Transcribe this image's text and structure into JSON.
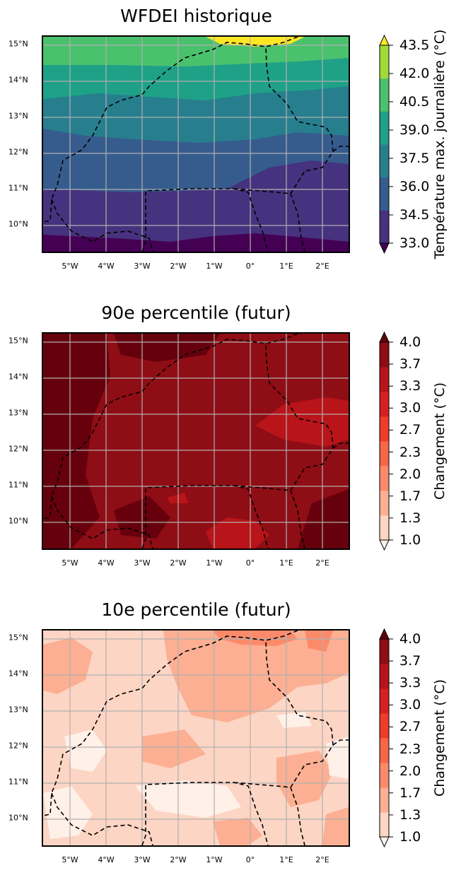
{
  "map_axes": {
    "lat_ticks": [
      "15°N",
      "14°N",
      "13°N",
      "12°N",
      "11°N",
      "10°N"
    ],
    "lon_ticks": [
      "5°W",
      "4°W",
      "3°W",
      "2°W",
      "1°W",
      "0°",
      "1°E",
      "2°E"
    ],
    "lat_range": [
      9.2,
      15.25
    ],
    "lon_range": [
      -5.8,
      2.75
    ],
    "gridlines": true,
    "boundaries": "dashed black country borders"
  },
  "panels": [
    {
      "title": "WFDEI historique",
      "colormap": "viridis",
      "colors": [
        "#440154",
        "#46327e",
        "#365c8d",
        "#277f8e",
        "#1fa187",
        "#4ac16d",
        "#a0da39",
        "#fde725"
      ],
      "colorbar": {
        "ticks": [
          "33.0",
          "34.5",
          "36.0",
          "37.5",
          "39.0",
          "40.5",
          "42.0",
          "43.5"
        ],
        "label": "Température max. journalière (°C)",
        "extend": "both"
      },
      "bands": [
        {
          "lat_top": 15.25,
          "lat_bottom": 14.95,
          "level": 7
        },
        {
          "lat_top": 14.95,
          "lat_bottom": 14.5,
          "level": 5
        },
        {
          "lat_top": 14.5,
          "lat_bottom": 13.5,
          "level": 4
        },
        {
          "lat_top": 13.5,
          "lat_bottom": 12.7,
          "level": 3
        },
        {
          "lat_top": 12.7,
          "lat_bottom": 11.9,
          "level": 2
        },
        {
          "lat_top": 11.9,
          "lat_bottom": 10.3,
          "level": 1
        },
        {
          "lat_top": 10.3,
          "lat_bottom": 9.2,
          "level": 0
        }
      ]
    },
    {
      "title": "90e percentile (futur)",
      "colormap": "Reds",
      "colors": [
        "#fff0e8",
        "#fdd5c4",
        "#fcaf93",
        "#fc8a6a",
        "#f86648",
        "#ef3c2c",
        "#d52221",
        "#b81419",
        "#8f0d15",
        "#67000d"
      ],
      "colorbar": {
        "ticks": [
          "1.0",
          "1.3",
          "1.7",
          "2.0",
          "2.3",
          "2.7",
          "3.0",
          "3.3",
          "3.7",
          "4.0"
        ],
        "label": "Changement (°C)",
        "extend": "both"
      },
      "base_level": 8
    },
    {
      "title": "10e percentile (futur)",
      "colormap": "Reds",
      "colors": [
        "#fff0e8",
        "#fdd5c4",
        "#fcaf93",
        "#fc8a6a",
        "#f86648",
        "#ef3c2c",
        "#d52221",
        "#b81419",
        "#8f0d15",
        "#67000d"
      ],
      "colorbar": {
        "ticks": [
          "1.0",
          "1.3",
          "1.7",
          "2.0",
          "2.3",
          "2.7",
          "3.0",
          "3.3",
          "3.7",
          "4.0"
        ],
        "label": "Changement (°C)",
        "extend": "both"
      },
      "base_level": 1
    }
  ]
}
